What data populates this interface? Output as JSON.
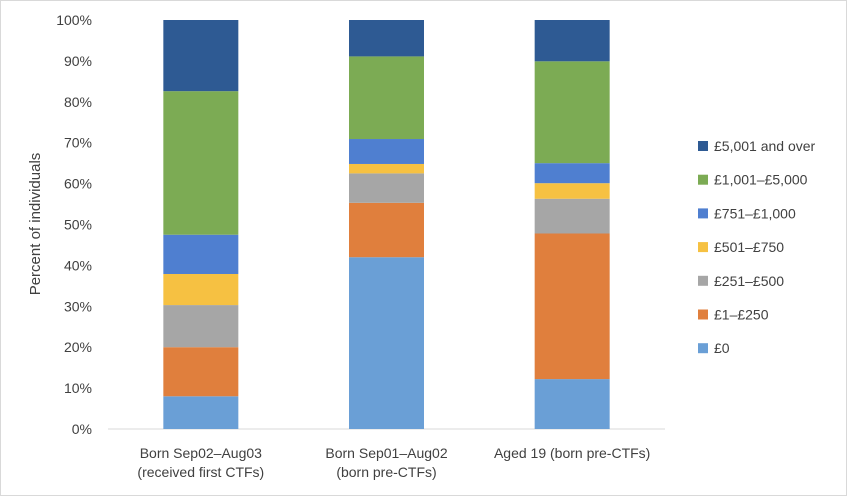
{
  "chart_data": {
    "type": "bar",
    "stacked": true,
    "title": "",
    "xlabel": "",
    "ylabel": "Percent of individuals",
    "ylim": [
      0,
      100
    ],
    "yticks": [
      "0%",
      "10%",
      "20%",
      "30%",
      "40%",
      "50%",
      "60%",
      "70%",
      "80%",
      "90%",
      "100%"
    ],
    "grid": false,
    "legend_position": "right",
    "categories": [
      [
        "Born Sep02–Aug03",
        "(received first CTFs)"
      ],
      [
        "Born Sep01–Aug02",
        "(born pre-CTFs)"
      ],
      [
        "Aged 19 (born pre-CTFs)"
      ]
    ],
    "series": [
      {
        "name": "£0",
        "color": "#6a9fd6",
        "values": [
          8,
          42,
          12.2
        ]
      },
      {
        "name": "£1–£250",
        "color": "#e07f3d",
        "values": [
          12,
          13.3,
          35.6
        ]
      },
      {
        "name": "£251–£500",
        "color": "#a6a6a6",
        "values": [
          10.3,
          7.2,
          8.5
        ]
      },
      {
        "name": "£501–£750",
        "color": "#f6c142",
        "values": [
          7.6,
          2.3,
          3.8
        ]
      },
      {
        "name": "£751–£1,000",
        "color": "#4f7fd0",
        "values": [
          9.6,
          6.1,
          4.9
        ]
      },
      {
        "name": "£1,001–£5,000",
        "color": "#7cab54",
        "values": [
          35.1,
          20.2,
          24.9
        ]
      },
      {
        "name": "£5,001 and over",
        "color": "#2e5a93",
        "values": [
          17.4,
          8.9,
          10.1
        ]
      }
    ]
  }
}
